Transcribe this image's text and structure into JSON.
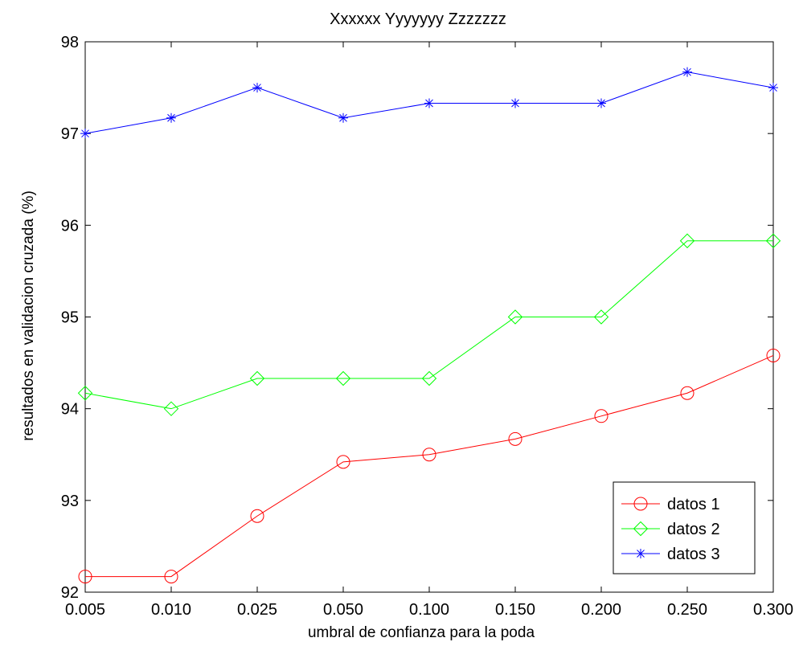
{
  "chart_data": {
    "type": "line",
    "title": "Xxxxxx Yyyyyyy Zzzzzzz",
    "xlabel": "umbral de confianza para la poda",
    "ylabel": "resultados en validacion cruzada (%)",
    "categories": [
      "0.005",
      "0.010",
      "0.025",
      "0.050",
      "0.100",
      "0.150",
      "0.200",
      "0.250",
      "0.300"
    ],
    "ylim": [
      92,
      98
    ],
    "yticks": [
      "92",
      "93",
      "94",
      "95",
      "96",
      "97",
      "98"
    ],
    "grid": false,
    "legend_position": "bottom-right",
    "series": [
      {
        "name": "datos 1",
        "color": "#ff0000",
        "marker": "circle",
        "values": [
          92.17,
          92.17,
          92.83,
          93.42,
          93.5,
          93.67,
          93.92,
          94.17,
          94.58
        ]
      },
      {
        "name": "datos 2",
        "color": "#00ff00",
        "marker": "diamond",
        "values": [
          94.17,
          94.0,
          94.33,
          94.33,
          94.33,
          95.0,
          95.0,
          95.83,
          95.83
        ]
      },
      {
        "name": "datos 3",
        "color": "#0000ff",
        "marker": "asterisk",
        "values": [
          97.0,
          97.17,
          97.5,
          97.17,
          97.33,
          97.33,
          97.33,
          97.67,
          97.5
        ]
      }
    ]
  }
}
